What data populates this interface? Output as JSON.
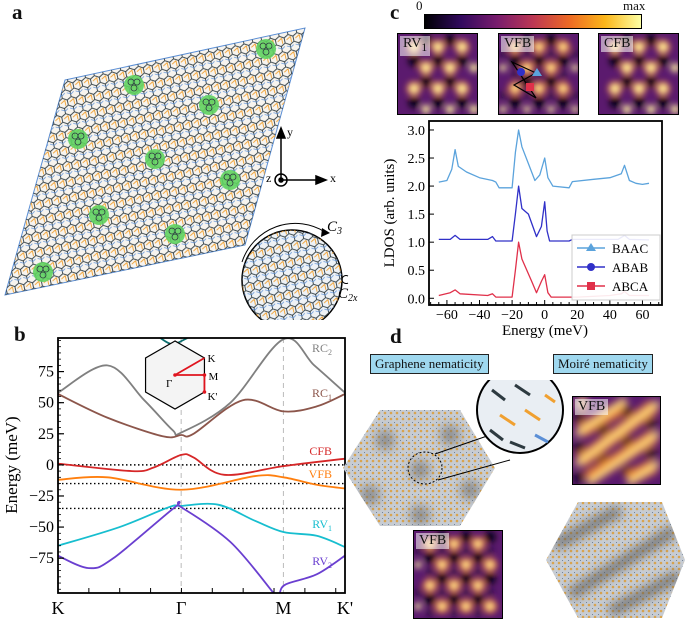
{
  "panels": {
    "a": "a",
    "b": "b",
    "c": "c",
    "d": "d"
  },
  "panel_a": {
    "axes": {
      "x": "x",
      "y": "y",
      "z": "z"
    },
    "symmetry": {
      "c3": "C",
      "c3_sub": "3",
      "c2x": "C",
      "c2x_sub": "2x"
    },
    "colors": {
      "aa_region": "#5fd35f",
      "bond_orange": "#f0a030",
      "bond_blue": "#5b8fd6",
      "bond_dark": "#2d3a40"
    }
  },
  "panel_c": {
    "colorbar": {
      "min_label": "0",
      "max_label": "max",
      "colormap": "inferno"
    },
    "maps": [
      {
        "label": "RV",
        "sub": "1"
      },
      {
        "label": "VFB",
        "sub": ""
      },
      {
        "label": "CFB",
        "sub": ""
      }
    ],
    "chart_data": {
      "type": "line",
      "xlabel": "Energy (meV)",
      "ylabel": "LDOS (arb. units)",
      "xlim": [
        -71,
        72
      ],
      "ylim": [
        -0.12,
        3.16
      ],
      "xticks": [
        -60,
        -40,
        -20,
        0,
        20,
        40,
        60
      ],
      "yticks": [
        "0.0",
        "0.5",
        "1.0",
        "1.5",
        "2.0",
        "2.5",
        "3.0"
      ],
      "legend_position": "bottom-right",
      "series": [
        {
          "name": "BAAC",
          "color": "#5ba3dc",
          "marker": "triangle",
          "points": [
            [
              -65,
              2.07
            ],
            [
              -60,
              2.1
            ],
            [
              -57,
              2.3
            ],
            [
              -55,
              2.65
            ],
            [
              -53,
              2.35
            ],
            [
              -48,
              2.25
            ],
            [
              -40,
              2.15
            ],
            [
              -32,
              2.1
            ],
            [
              -30,
              2.07
            ],
            [
              -28,
              1.97
            ],
            [
              -20,
              1.97
            ],
            [
              -18,
              2.6
            ],
            [
              -16,
              3.0
            ],
            [
              -14,
              2.7
            ],
            [
              -10,
              2.4
            ],
            [
              -6,
              2.1
            ],
            [
              -3,
              2.2
            ],
            [
              0,
              2.5
            ],
            [
              2,
              2.15
            ],
            [
              5,
              2.0
            ],
            [
              15,
              1.97
            ],
            [
              17,
              2.08
            ],
            [
              30,
              2.12
            ],
            [
              40,
              2.15
            ],
            [
              47,
              2.22
            ],
            [
              49,
              2.37
            ],
            [
              52,
              2.1
            ],
            [
              56,
              2.05
            ],
            [
              60,
              2.03
            ],
            [
              64,
              2.05
            ]
          ]
        },
        {
          "name": "ABAB",
          "color": "#3030c8",
          "marker": "circle",
          "points": [
            [
              -65,
              1.05
            ],
            [
              -58,
              1.05
            ],
            [
              -55,
              1.12
            ],
            [
              -52,
              1.05
            ],
            [
              -35,
              1.05
            ],
            [
              -32,
              1.1
            ],
            [
              -30,
              1.02
            ],
            [
              -20,
              1.02
            ],
            [
              -18,
              1.5
            ],
            [
              -16,
              2.0
            ],
            [
              -14,
              1.6
            ],
            [
              -10,
              1.5
            ],
            [
              -5,
              1.1
            ],
            [
              -2,
              1.28
            ],
            [
              0,
              1.72
            ],
            [
              1.5,
              1.2
            ],
            [
              3,
              1.02
            ],
            [
              15,
              1.02
            ],
            [
              17,
              1.05
            ],
            [
              45,
              1.05
            ],
            [
              49,
              1.12
            ],
            [
              52,
              1.05
            ],
            [
              64,
              1.04
            ]
          ]
        },
        {
          "name": "ABCA",
          "color": "#e0304a",
          "marker": "square",
          "points": [
            [
              -65,
              0.05
            ],
            [
              -58,
              0.1
            ],
            [
              -55,
              0.15
            ],
            [
              -52,
              0.08
            ],
            [
              -35,
              0.05
            ],
            [
              -32,
              0.08
            ],
            [
              -30,
              0.02
            ],
            [
              -20,
              0.02
            ],
            [
              -18,
              0.5
            ],
            [
              -16,
              1.0
            ],
            [
              -14,
              0.7
            ],
            [
              -8,
              0.3
            ],
            [
              -5,
              0.1
            ],
            [
              -2,
              0.3
            ],
            [
              0,
              0.42
            ],
            [
              2,
              0.1
            ],
            [
              4,
              0.02
            ],
            [
              20,
              0.02
            ],
            [
              40,
              0.05
            ],
            [
              47,
              0.08
            ],
            [
              49,
              0.12
            ],
            [
              52,
              0.05
            ],
            [
              64,
              0.05
            ]
          ]
        }
      ]
    }
  },
  "panel_b": {
    "chart_data": {
      "type": "line",
      "ylabel": "Energy (meV)",
      "ylim": [
        -103,
        102
      ],
      "yticks": [
        75,
        50,
        25,
        0,
        -25,
        -50,
        -75
      ],
      "xtick_labels": [
        "K",
        "Γ",
        "M",
        "K'"
      ],
      "xtick_positions": [
        0,
        1,
        1.83,
        2.33
      ],
      "reference_lines": [
        0,
        -15,
        -35
      ],
      "series": [
        {
          "name": "RC",
          "sub": "2",
          "color": "#808080",
          "points": [
            [
              0,
              58
            ],
            [
              0.4,
              80
            ],
            [
              0.7,
              52
            ],
            [
              0.93,
              28
            ],
            [
              1.0,
              26
            ],
            [
              1.4,
              50
            ],
            [
              1.83,
              101
            ],
            [
              2.08,
              80
            ],
            [
              2.33,
              58
            ]
          ]
        },
        {
          "name": "RC",
          "sub": "1",
          "color": "#8c564b",
          "points": [
            [
              0,
              57
            ],
            [
              0.4,
              38
            ],
            [
              0.85,
              23
            ],
            [
              1.0,
              24
            ],
            [
              1.1,
              25
            ],
            [
              1.5,
              52
            ],
            [
              1.83,
              43
            ],
            [
              2.1,
              47
            ],
            [
              2.33,
              57
            ]
          ]
        },
        {
          "name": "CFB",
          "sub": "",
          "color": "#d62728",
          "points": [
            [
              0,
              1
            ],
            [
              0.6,
              -5
            ],
            [
              0.78,
              -2
            ],
            [
              1.0,
              8
            ],
            [
              1.1,
              6
            ],
            [
              1.35,
              -8
            ],
            [
              1.83,
              -1
            ],
            [
              2.33,
              5
            ]
          ]
        },
        {
          "name": "VFB",
          "sub": "",
          "color": "#ff7f0e",
          "points": [
            [
              0,
              -12
            ],
            [
              0.4,
              -10
            ],
            [
              1.0,
              -20
            ],
            [
              1.6,
              -9
            ],
            [
              1.83,
              -10
            ],
            [
              2.1,
              -16
            ],
            [
              2.33,
              -19
            ]
          ]
        },
        {
          "name": "RV",
          "sub": "1",
          "color": "#17becf",
          "points": [
            [
              0,
              -65
            ],
            [
              0.5,
              -50
            ],
            [
              0.9,
              -34
            ],
            [
              1.0,
              -33
            ],
            [
              1.3,
              -32
            ],
            [
              1.6,
              -45
            ],
            [
              1.83,
              -54
            ],
            [
              2.1,
              -57
            ],
            [
              2.33,
              -66
            ]
          ]
        },
        {
          "name": "RV",
          "sub": "2",
          "color": "#6a3fd0",
          "points": [
            [
              0,
              -73
            ],
            [
              0.25,
              -83
            ],
            [
              0.45,
              -75
            ],
            [
              0.95,
              -34
            ],
            [
              1.0,
              -34
            ],
            [
              1.4,
              -62
            ],
            [
              1.75,
              -103
            ]
          ],
          "points2": [
            [
              1.8,
              -103
            ],
            [
              1.85,
              -96
            ],
            [
              2.1,
              -88
            ],
            [
              2.33,
              -73
            ]
          ]
        },
        {
          "name": "",
          "sub": "",
          "color": "#0d6e6e",
          "points": [
            [
              0.83,
              102
            ],
            [
              0.93,
              97
            ],
            [
              1.05,
              102
            ]
          ]
        }
      ],
      "inset_bz": {
        "labels": [
          "K",
          "M",
          "Γ",
          "K'"
        ],
        "arrow_color": "#e0141e"
      }
    }
  },
  "panel_d": {
    "tags": [
      "Graphene nematicity",
      "Moiré nematicity"
    ],
    "maps": [
      {
        "label": "VFB"
      },
      {
        "label": "VFB"
      }
    ]
  }
}
